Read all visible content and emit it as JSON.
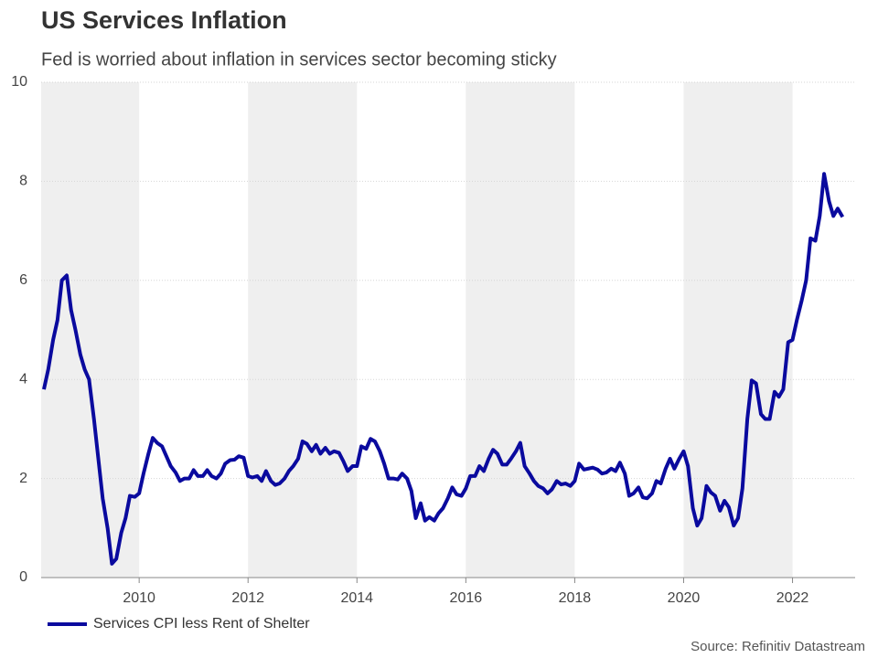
{
  "chart_data": {
    "type": "line",
    "title": "US Services Inflation",
    "subtitle": "Fed is worried about inflation in services sector becoming sticky",
    "source": "Source: Refinitiv Datastream",
    "legend": "bottom-left",
    "grid": true,
    "shaded_alternate_periods": true,
    "xlim": [
      2008.2,
      2023.15
    ],
    "xticks": [
      2010,
      2012,
      2014,
      2016,
      2018,
      2020,
      2022
    ],
    "ylim": [
      0,
      10
    ],
    "yticks": [
      0,
      2,
      4,
      6,
      8,
      10
    ],
    "x": [
      2008.25,
      2008.33,
      2008.42,
      2008.5,
      2008.58,
      2008.67,
      2008.75,
      2008.83,
      2008.92,
      2009,
      2009.08,
      2009.17,
      2009.25,
      2009.33,
      2009.42,
      2009.5,
      2009.58,
      2009.67,
      2009.75,
      2009.83,
      2009.92,
      2010,
      2010.08,
      2010.17,
      2010.25,
      2010.33,
      2010.42,
      2010.5,
      2010.58,
      2010.67,
      2010.75,
      2010.83,
      2010.92,
      2011,
      2011.08,
      2011.17,
      2011.25,
      2011.33,
      2011.42,
      2011.5,
      2011.58,
      2011.67,
      2011.75,
      2011.83,
      2011.92,
      2012,
      2012.08,
      2012.17,
      2012.25,
      2012.33,
      2012.42,
      2012.5,
      2012.58,
      2012.67,
      2012.75,
      2012.83,
      2012.92,
      2013,
      2013.08,
      2013.17,
      2013.25,
      2013.33,
      2013.42,
      2013.5,
      2013.58,
      2013.67,
      2013.75,
      2013.83,
      2013.92,
      2014,
      2014.08,
      2014.17,
      2014.25,
      2014.33,
      2014.42,
      2014.5,
      2014.58,
      2014.67,
      2014.75,
      2014.83,
      2014.92,
      2015,
      2015.08,
      2015.17,
      2015.25,
      2015.33,
      2015.42,
      2015.5,
      2015.58,
      2015.67,
      2015.75,
      2015.83,
      2015.92,
      2016,
      2016.08,
      2016.17,
      2016.25,
      2016.33,
      2016.42,
      2016.5,
      2016.58,
      2016.67,
      2016.75,
      2016.83,
      2016.92,
      2017,
      2017.08,
      2017.17,
      2017.25,
      2017.33,
      2017.42,
      2017.5,
      2017.58,
      2017.67,
      2017.75,
      2017.83,
      2017.92,
      2018,
      2018.08,
      2018.17,
      2018.25,
      2018.33,
      2018.42,
      2018.5,
      2018.58,
      2018.67,
      2018.75,
      2018.83,
      2018.92,
      2019,
      2019.08,
      2019.17,
      2019.25,
      2019.33,
      2019.42,
      2019.5,
      2019.58,
      2019.67,
      2019.75,
      2019.83,
      2019.92,
      2020,
      2020.08,
      2020.17,
      2020.25,
      2020.33,
      2020.42,
      2020.5,
      2020.58,
      2020.67,
      2020.75,
      2020.83,
      2020.92,
      2021,
      2021.08,
      2021.17,
      2021.25,
      2021.33,
      2021.42,
      2021.5,
      2021.58,
      2021.67,
      2021.75,
      2021.83,
      2021.92,
      2022,
      2022.08,
      2022.17,
      2022.25,
      2022.33,
      2022.42,
      2022.5,
      2022.58,
      2022.67,
      2022.75,
      2022.83,
      2022.92
    ],
    "series": [
      {
        "name": "Services CPI less Rent of Shelter",
        "color": "#0a0a9e",
        "values": [
          3.8,
          4.2,
          4.8,
          5.2,
          6.0,
          6.1,
          5.4,
          5.0,
          4.5,
          4.2,
          4.0,
          3.2,
          2.4,
          1.6,
          1.0,
          0.28,
          0.38,
          0.9,
          1.2,
          1.65,
          1.63,
          1.7,
          2.1,
          2.5,
          2.82,
          2.72,
          2.65,
          2.45,
          2.25,
          2.12,
          1.95,
          2.0,
          2.0,
          2.17,
          2.05,
          2.05,
          2.17,
          2.05,
          2.0,
          2.1,
          2.3,
          2.37,
          2.38,
          2.45,
          2.42,
          2.05,
          2.02,
          2.05,
          1.95,
          2.15,
          1.95,
          1.87,
          1.9,
          2.0,
          2.15,
          2.25,
          2.4,
          2.75,
          2.7,
          2.55,
          2.68,
          2.5,
          2.62,
          2.5,
          2.55,
          2.52,
          2.35,
          2.15,
          2.25,
          2.25,
          2.65,
          2.6,
          2.8,
          2.75,
          2.55,
          2.3,
          2.0,
          2.0,
          1.98,
          2.1,
          2.0,
          1.75,
          1.2,
          1.5,
          1.15,
          1.22,
          1.15,
          1.3,
          1.4,
          1.6,
          1.82,
          1.68,
          1.65,
          1.8,
          2.05,
          2.05,
          2.25,
          2.15,
          2.4,
          2.58,
          2.5,
          2.28,
          2.28,
          2.4,
          2.55,
          2.72,
          2.25,
          2.1,
          1.95,
          1.85,
          1.8,
          1.7,
          1.78,
          1.95,
          1.88,
          1.9,
          1.85,
          1.95,
          2.3,
          2.18,
          2.2,
          2.22,
          2.18,
          2.1,
          2.12,
          2.2,
          2.15,
          2.32,
          2.1,
          1.65,
          1.7,
          1.82,
          1.62,
          1.6,
          1.7,
          1.95,
          1.9,
          2.2,
          2.4,
          2.2,
          2.4,
          2.55,
          2.25,
          1.4,
          1.05,
          1.2,
          1.85,
          1.72,
          1.65,
          1.35,
          1.55,
          1.42,
          1.05,
          1.2,
          1.8,
          3.2,
          3.98,
          3.92,
          3.3,
          3.2,
          3.2,
          3.75,
          3.65,
          3.8,
          4.75,
          4.8,
          5.2,
          5.6,
          6.0,
          6.85,
          6.8,
          7.3,
          8.15,
          7.6,
          7.3,
          7.45,
          7.28
        ]
      }
    ]
  }
}
